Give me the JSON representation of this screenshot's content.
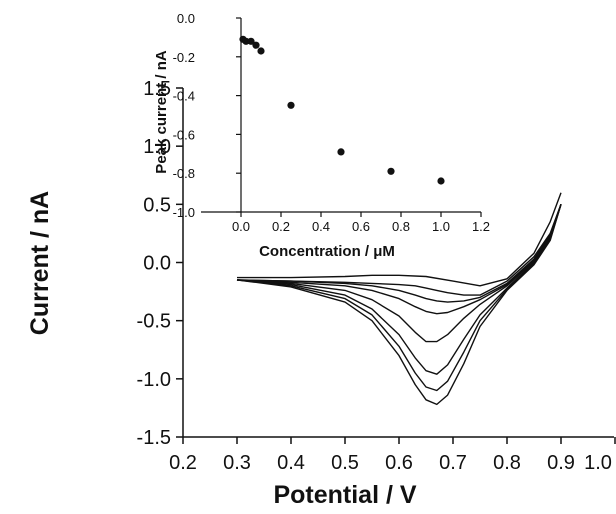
{
  "chart_data": [
    {
      "type": "line",
      "xlabel": "Potential / V",
      "ylabel": "Current / nA",
      "xlim": [
        0.2,
        1.0
      ],
      "ylim": [
        -1.5,
        1.5
      ],
      "xticks": [
        "0.2",
        "0.3",
        "0.4",
        "0.5",
        "0.6",
        "0.7",
        "0.8",
        "0.9",
        "1.0"
      ],
      "yticks": [
        "1.5",
        "1.0",
        "0.5",
        "0.0",
        "-0.5",
        "-1.0",
        "-1.5"
      ],
      "grid": false,
      "legend": "none",
      "line_color": "#111111",
      "series": [
        {
          "x": [
            0.3,
            0.4,
            0.5,
            0.55,
            0.6,
            0.63,
            0.65,
            0.67,
            0.69,
            0.72,
            0.75,
            0.8,
            0.85,
            0.88,
            0.9
          ],
          "y": [
            -0.15,
            -0.16,
            -0.17,
            -0.18,
            -0.19,
            -0.2,
            -0.22,
            -0.24,
            -0.26,
            -0.28,
            -0.28,
            -0.16,
            0.05,
            0.25,
            0.5
          ]
        },
        {
          "x": [
            0.3,
            0.4,
            0.5,
            0.55,
            0.6,
            0.63,
            0.65,
            0.67,
            0.69,
            0.72,
            0.75,
            0.8,
            0.85,
            0.88,
            0.9
          ],
          "y": [
            -0.15,
            -0.16,
            -0.18,
            -0.2,
            -0.24,
            -0.28,
            -0.31,
            -0.33,
            -0.34,
            -0.33,
            -0.3,
            -0.18,
            0.03,
            0.24,
            0.5
          ]
        },
        {
          "x": [
            0.3,
            0.4,
            0.5,
            0.55,
            0.6,
            0.63,
            0.65,
            0.67,
            0.69,
            0.72,
            0.75,
            0.8,
            0.85,
            0.88,
            0.9
          ],
          "y": [
            -0.15,
            -0.17,
            -0.2,
            -0.24,
            -0.31,
            -0.38,
            -0.42,
            -0.44,
            -0.43,
            -0.38,
            -0.32,
            -0.19,
            0.02,
            0.23,
            0.5
          ]
        },
        {
          "x": [
            0.3,
            0.4,
            0.5,
            0.55,
            0.6,
            0.63,
            0.65,
            0.67,
            0.69,
            0.72,
            0.75,
            0.8,
            0.85,
            0.88,
            0.9
          ],
          "y": [
            -0.15,
            -0.18,
            -0.24,
            -0.32,
            -0.46,
            -0.6,
            -0.68,
            -0.68,
            -0.62,
            -0.48,
            -0.36,
            -0.2,
            0.01,
            0.22,
            0.5
          ]
        },
        {
          "x": [
            0.3,
            0.4,
            0.5,
            0.55,
            0.6,
            0.63,
            0.65,
            0.67,
            0.69,
            0.72,
            0.75,
            0.8,
            0.85,
            0.88,
            0.9
          ],
          "y": [
            -0.15,
            -0.19,
            -0.28,
            -0.4,
            -0.62,
            -0.82,
            -0.93,
            -0.96,
            -0.88,
            -0.66,
            -0.45,
            -0.22,
            0.0,
            0.21,
            0.5
          ]
        },
        {
          "x": [
            0.3,
            0.4,
            0.5,
            0.55,
            0.6,
            0.63,
            0.65,
            0.67,
            0.69,
            0.72,
            0.75,
            0.8,
            0.85,
            0.88,
            0.9
          ],
          "y": [
            -0.15,
            -0.2,
            -0.31,
            -0.45,
            -0.72,
            -0.95,
            -1.07,
            -1.1,
            -1.02,
            -0.77,
            -0.5,
            -0.23,
            -0.01,
            0.2,
            0.5
          ]
        },
        {
          "x": [
            0.3,
            0.4,
            0.5,
            0.55,
            0.6,
            0.63,
            0.65,
            0.67,
            0.69,
            0.72,
            0.75,
            0.8,
            0.85,
            0.88,
            0.9
          ],
          "y": [
            -0.15,
            -0.21,
            -0.34,
            -0.5,
            -0.8,
            -1.05,
            -1.18,
            -1.22,
            -1.14,
            -0.87,
            -0.55,
            -0.24,
            -0.02,
            0.19,
            0.5
          ]
        },
        {
          "x": [
            0.3,
            0.4,
            0.5,
            0.55,
            0.6,
            0.65,
            0.7,
            0.75,
            0.8,
            0.85,
            0.88,
            0.9
          ],
          "y": [
            -0.13,
            -0.13,
            -0.12,
            -0.11,
            -0.11,
            -0.12,
            -0.16,
            -0.2,
            -0.14,
            0.08,
            0.35,
            0.6
          ]
        }
      ]
    },
    {
      "type": "scatter",
      "xlabel": "Concentration / μM",
      "ylabel": "Peak current / nA",
      "xlim": [
        -0.2,
        1.2
      ],
      "ylim": [
        -1.0,
        0.0
      ],
      "xticks": [
        "0.0",
        "0.2",
        "0.4",
        "0.6",
        "0.8",
        "1.0",
        "1.2"
      ],
      "yticks": [
        "0.0",
        "-0.2",
        "-0.4",
        "-0.6",
        "-0.8",
        "-1.0"
      ],
      "grid": false,
      "legend": "none",
      "marker_color": "#111111",
      "points": [
        {
          "x": 0.01,
          "y": -0.11
        },
        {
          "x": 0.025,
          "y": -0.12
        },
        {
          "x": 0.05,
          "y": -0.12
        },
        {
          "x": 0.075,
          "y": -0.14
        },
        {
          "x": 0.1,
          "y": -0.17
        },
        {
          "x": 0.25,
          "y": -0.45
        },
        {
          "x": 0.5,
          "y": -0.69
        },
        {
          "x": 0.75,
          "y": -0.79
        },
        {
          "x": 1.0,
          "y": -0.84
        }
      ]
    }
  ]
}
